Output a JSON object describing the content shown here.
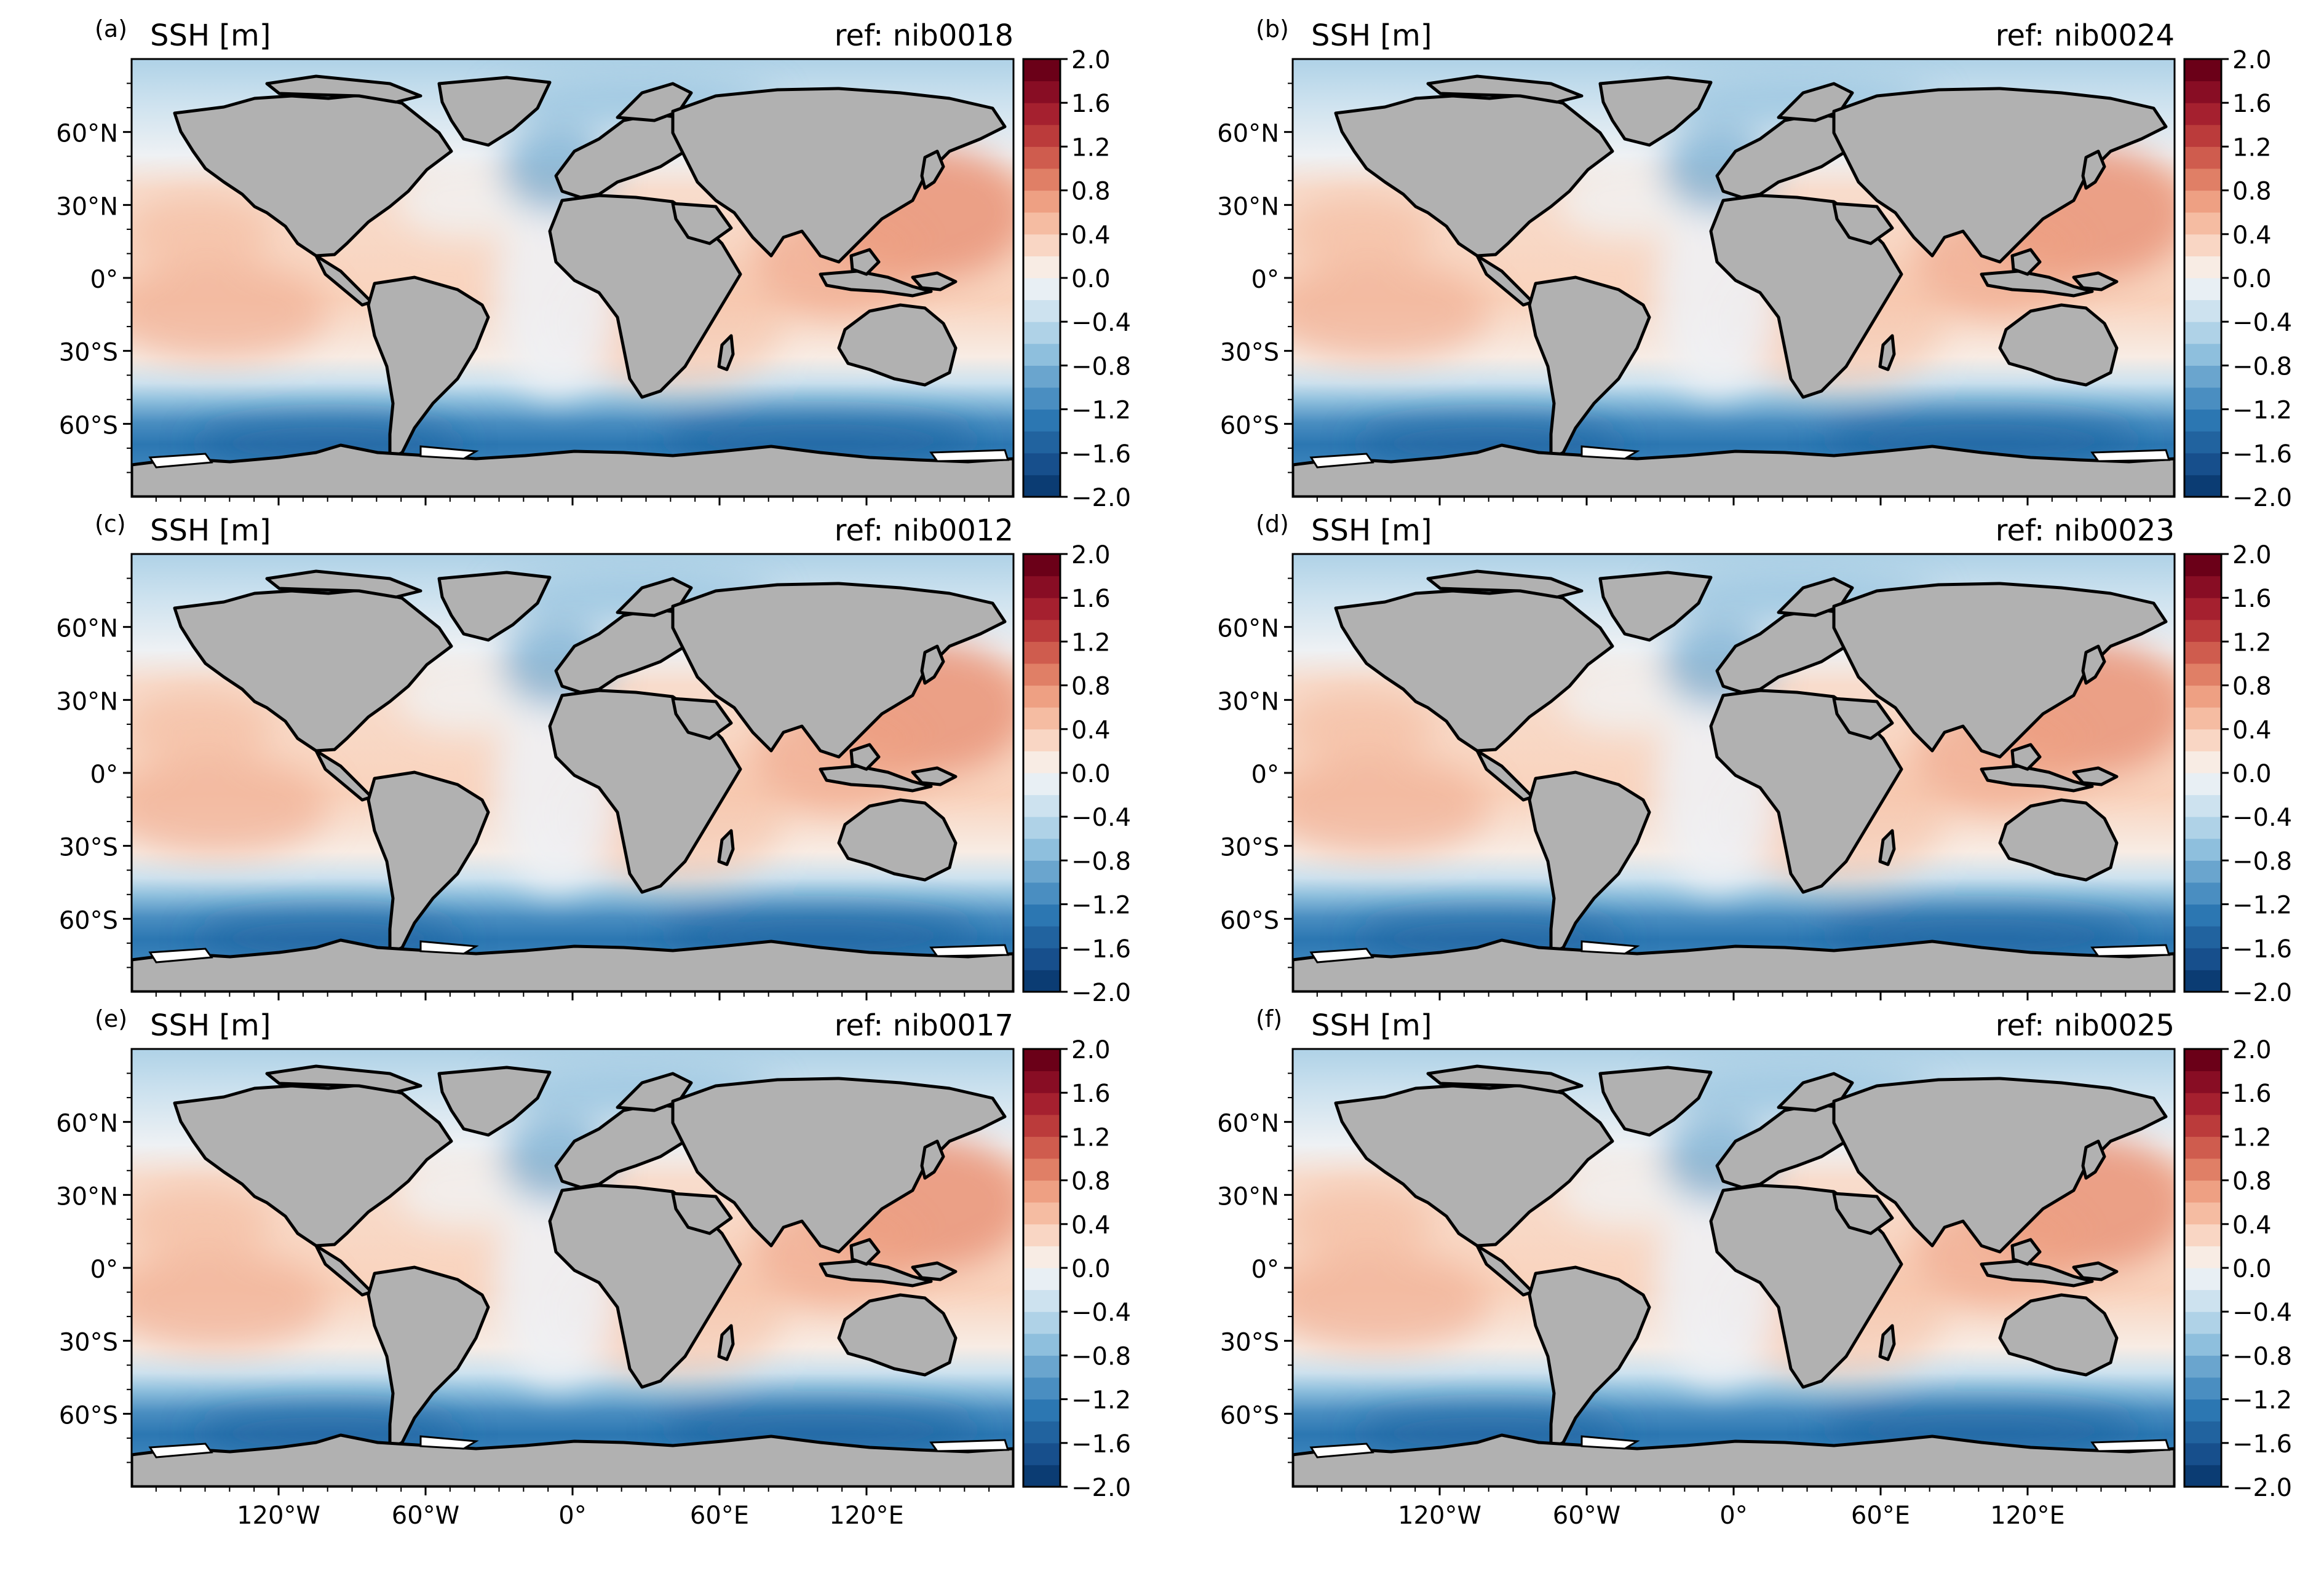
{
  "figure": {
    "panels": [
      {
        "letter": "(a)",
        "title": "SSH [m]",
        "ref": "ref: nib0018"
      },
      {
        "letter": "(b)",
        "title": "SSH [m]",
        "ref": "ref: nib0024"
      },
      {
        "letter": "(c)",
        "title": "SSH [m]",
        "ref": "ref: nib0012"
      },
      {
        "letter": "(d)",
        "title": "SSH [m]",
        "ref": "ref: nib0023"
      },
      {
        "letter": "(e)",
        "title": "SSH [m]",
        "ref": "ref: nib0017"
      },
      {
        "letter": "(f)",
        "title": "SSH [m]",
        "ref": "ref: nib0025"
      }
    ],
    "lat_ticks": [
      "60°N",
      "30°N",
      "0°",
      "30°S",
      "60°S"
    ],
    "lon_ticks": [
      "120°W",
      "60°W",
      "0°",
      "60°E",
      "120°E"
    ],
    "colorbar_ticks": [
      "2.0",
      "1.6",
      "1.2",
      "0.8",
      "0.4",
      "0.0",
      "−0.4",
      "−0.8",
      "−1.2",
      "−1.6",
      "−2.0"
    ],
    "colorbar_colors": [
      "#0b3c73",
      "#174f8c",
      "#21639f",
      "#2c77b2",
      "#4a8ec1",
      "#6aa5ce",
      "#8ebfdd",
      "#afd2e7",
      "#cde2ef",
      "#e8eff4",
      "#f8ece4",
      "#f9d6c4",
      "#f5bca2",
      "#eea083",
      "#e07f66",
      "#cf5c4e",
      "#bb3b3b",
      "#a5202f",
      "#880d24",
      "#6b0018"
    ],
    "colors": {
      "land": "#b1b1b1",
      "ice": "#ffffff",
      "coast": "#000000"
    }
  },
  "chart_data": {
    "type": "map",
    "variable": "SSH [m]",
    "colorbar_range": [
      -2.0,
      2.0
    ],
    "colorbar_step": 0.2,
    "lat_range": [
      -90,
      90
    ],
    "lon_range": [
      -180,
      180
    ],
    "panels": [
      {
        "label": "(a)",
        "ref": "nib0018"
      },
      {
        "label": "(b)",
        "ref": "nib0024"
      },
      {
        "label": "(c)",
        "ref": "nib0012"
      },
      {
        "label": "(d)",
        "ref": "nib0023"
      },
      {
        "label": "(e)",
        "ref": "nib0017"
      },
      {
        "label": "(f)",
        "ref": "nib0025"
      }
    ]
  }
}
